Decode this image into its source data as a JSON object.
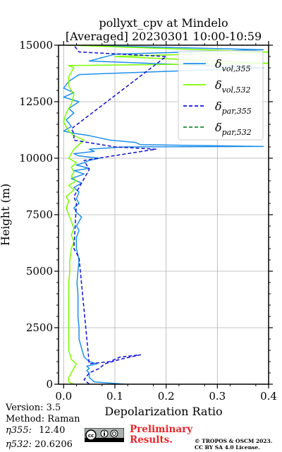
{
  "chart_data": {
    "type": "line",
    "title": "pollyxt_cpv at Mindelo",
    "subtitle": "[Averaged] 20230301 10:00-10:59",
    "xlabel": "Depolarization Ratio",
    "ylabel": "Height (m)",
    "xlim": [
      -0.01,
      0.4
    ],
    "ylim": [
      0,
      15000
    ],
    "xticks": [
      "0.0",
      "0.1",
      "0.2",
      "0.3",
      "0.4"
    ],
    "yticks": [
      "0",
      "2500",
      "5000",
      "7500",
      "10000",
      "12500",
      "15000"
    ],
    "grid": true,
    "legend_position": "top-right",
    "series": [
      {
        "name": "vol,355",
        "color": "#1f8fea",
        "style": "solid",
        "x": [
          0.12,
          0.06,
          0.05,
          0.05,
          0.045,
          0.05,
          0.045,
          0.065,
          0.05,
          0.04,
          0.035,
          0.03,
          0.03,
          0.028,
          0.028,
          0.028,
          0.026,
          0.028,
          0.03,
          0.025,
          0.025,
          0.03,
          0.025,
          0.03,
          0.035,
          0.025,
          0.02,
          0.03,
          0.025,
          0.03,
          0.02,
          0.035,
          0.015,
          0.04,
          0.02,
          0.05,
          0.025,
          0.04,
          0.05,
          0.07,
          0.03,
          0.02,
          0.06,
          0.05,
          0.12,
          0.39,
          0.15,
          0.14,
          0.09,
          0.07,
          0.05,
          0.02,
          0.0,
          0.015,
          0.005,
          0.02,
          0.01,
          0.03,
          0.0,
          0.02,
          0.0,
          0.01,
          0.03,
          0.39,
          0.05,
          0.1,
          0.39,
          0.02
        ],
        "y": [
          0,
          100,
          300,
          500,
          600,
          700,
          800,
          900,
          1000,
          1200,
          1600,
          2000,
          2500,
          3000,
          3500,
          4000,
          4500,
          5000,
          5500,
          6000,
          6500,
          6800,
          7000,
          7200,
          7400,
          7600,
          7800,
          8000,
          8200,
          8500,
          8700,
          8900,
          9100,
          9300,
          9450,
          9550,
          9700,
          9800,
          9900,
          10000,
          10100,
          10200,
          10300,
          10400,
          10500,
          10520,
          10600,
          10700,
          10800,
          10900,
          11000,
          11100,
          11200,
          11400,
          11700,
          12000,
          12200,
          12500,
          12700,
          12900,
          13100,
          13400,
          13700,
          14000,
          14300,
          14600,
          14800,
          15000
        ]
      },
      {
        "name": "vol,532",
        "color": "#7cfc00",
        "style": "solid",
        "x": [
          0.02,
          0.01,
          0.01,
          0.015,
          0.02,
          0.025,
          0.015,
          0.01,
          0.01,
          0.01,
          0.01,
          0.01,
          0.01,
          0.01,
          0.012,
          0.012,
          0.015,
          0.02,
          0.015,
          0.02,
          0.015,
          0.01,
          0.005,
          0.01,
          0.005,
          0.02,
          0.01,
          0.025,
          0.015,
          0.02,
          0.015,
          0.025,
          0.01,
          0.015,
          0.02,
          0.03,
          0.04,
          0.02,
          0.01,
          0.0,
          0.005,
          0.015,
          0.02,
          0.01,
          0.01,
          0.02,
          0.01,
          0.4,
          0.1,
          0.4,
          0.01
        ],
        "y": [
          0,
          100,
          300,
          500,
          700,
          900,
          1100,
          1500,
          2000,
          2500,
          3000,
          3500,
          4000,
          4500,
          5000,
          5500,
          6000,
          6300,
          6600,
          6900,
          7200,
          7500,
          7800,
          8100,
          8300,
          8600,
          8800,
          9000,
          9200,
          9400,
          9600,
          9800,
          10000,
          10200,
          10400,
          10600,
          10800,
          11000,
          11200,
          11600,
          12000,
          12400,
          12800,
          13200,
          13600,
          14000,
          14100,
          14200,
          14500,
          14700,
          15000
        ]
      },
      {
        "name": "par,355",
        "color": "#1010d0",
        "style": "dashed",
        "x": [
          0.05,
          0.04,
          0.05,
          0.07,
          0.08,
          0.11,
          0.15,
          0.11,
          0.09,
          0.05,
          0.03,
          0.02,
          0.025,
          0.02,
          0.05,
          0.04,
          0.18,
          0.1,
          0.02,
          0.02,
          0.015,
          0.2,
          0.03,
          0.02
        ],
        "y": [
          0,
          200,
          500,
          700,
          900,
          1100,
          1300,
          1200,
          1000,
          900,
          5600,
          6000,
          8000,
          8300,
          9500,
          9900,
          10400,
          10500,
          10800,
          11100,
          11300,
          14500,
          14700,
          15000
        ]
      },
      {
        "name": "par,532",
        "color": "#1a8a3a",
        "style": "dashed",
        "x": [],
        "y": []
      }
    ]
  },
  "footer": {
    "version": "Version: 3.5",
    "method": "Method: Raman",
    "eta355_label": "η355:",
    "eta355_value": "12.40",
    "eta532_label": "η532:",
    "eta532_value": "20.6206",
    "preliminary_line1": "Preliminary",
    "preliminary_line2": "Results.",
    "copyright_line1": "© TROPOS & OSCM 2023.",
    "copyright_line2": "CC BY SA 4.0 License."
  }
}
